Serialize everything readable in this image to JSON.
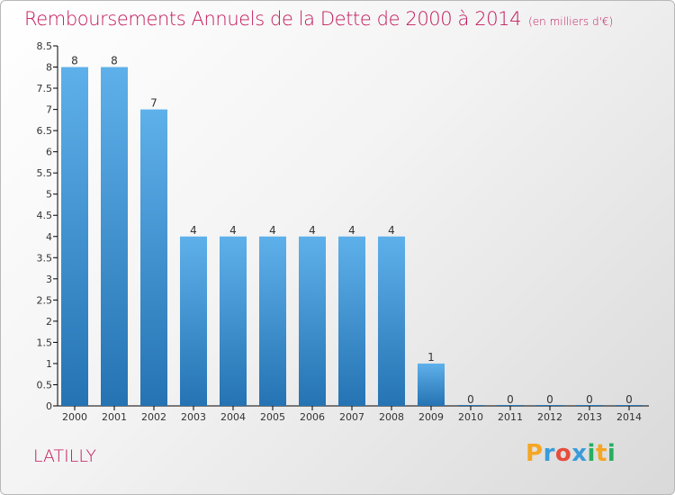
{
  "title": "Remboursements Annuels de la Dette de 2000 à 2014",
  "title_unit": "(en milliers d'€)",
  "commune": "LATILLY",
  "logo": {
    "text": "Proxiti",
    "letters": [
      {
        "ch": "P",
        "color": "#f5a623"
      },
      {
        "ch": "r",
        "color": "#3a9bd9"
      },
      {
        "ch": "o",
        "color": "#e74c3c"
      },
      {
        "ch": "x",
        "color": "#3a9bd9"
      },
      {
        "ch": "i",
        "color": "#27ae60"
      },
      {
        "ch": "t",
        "color": "#f5a623"
      },
      {
        "ch": "i",
        "color": "#27ae60"
      }
    ]
  },
  "colors": {
    "title": "#c2185b",
    "bar_top": "#5eb0ea",
    "bar_bottom": "#2573b3",
    "axis": "#000000",
    "label": "#333333"
  },
  "chart_data": {
    "type": "bar",
    "categories": [
      "2000",
      "2001",
      "2002",
      "2003",
      "2004",
      "2005",
      "2006",
      "2007",
      "2008",
      "2009",
      "2010",
      "2011",
      "2012",
      "2013",
      "2014"
    ],
    "values": [
      8,
      8,
      7,
      4,
      4,
      4,
      4,
      4,
      4,
      1,
      0,
      0,
      0,
      0,
      0
    ],
    "value_labels": [
      "8",
      "8",
      "7",
      "4",
      "4",
      "4",
      "4",
      "4",
      "4",
      "1",
      "0",
      "0",
      "0",
      "0",
      "0"
    ],
    "title": "Remboursements Annuels de la Dette de 2000 à 2014",
    "xlabel": "",
    "ylabel": "",
    "ylim": [
      0,
      8.5
    ],
    "yticks": [
      "0",
      "0.5",
      "1",
      "1.5",
      "2",
      "2.5",
      "3",
      "3.5",
      "4",
      "4.5",
      "5",
      "5.5",
      "6",
      "6.5",
      "7",
      "7.5",
      "8",
      "8.5"
    ],
    "grid": false,
    "legend": "none"
  }
}
